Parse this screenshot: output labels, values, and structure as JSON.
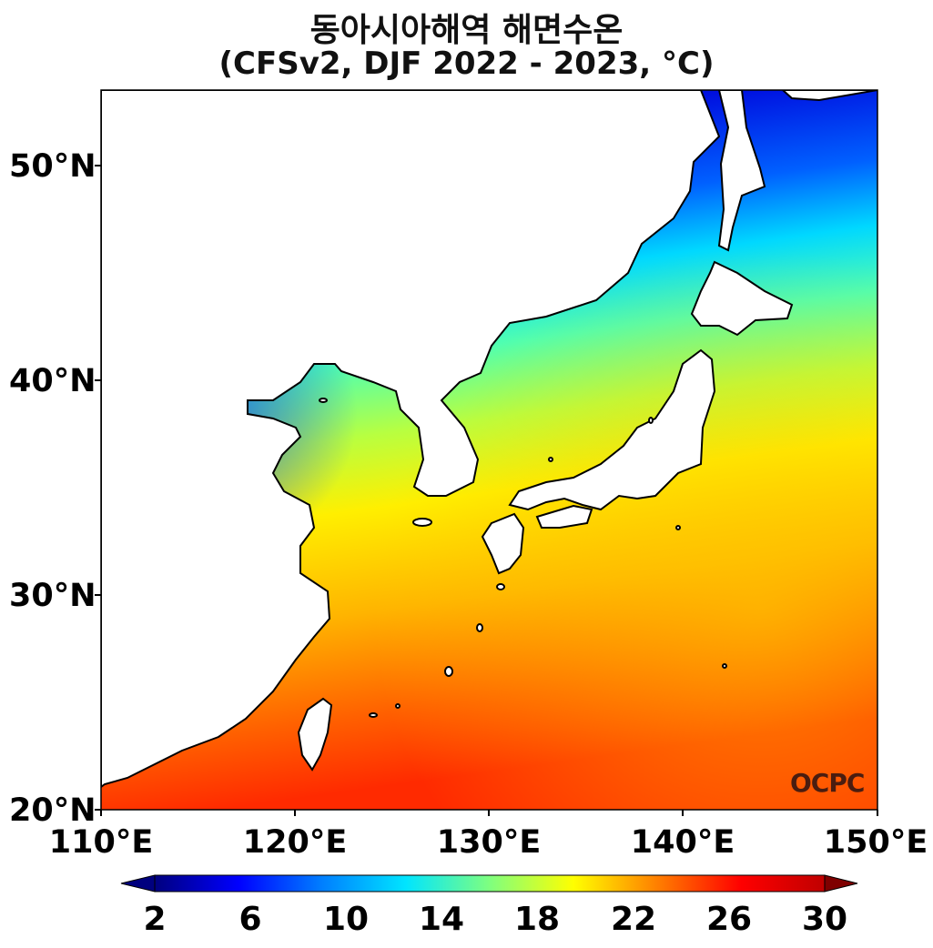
{
  "title": {
    "line1": "동아시아해역 해면수온",
    "line2": "(CFSv2, DJF 2022 - 2023, °C)"
  },
  "map": {
    "lon_range": [
      110,
      150
    ],
    "lat_range": [
      20,
      53.5
    ],
    "x_ticks": [
      "110°E",
      "120°E",
      "130°E",
      "140°E",
      "150°E"
    ],
    "y_ticks": [
      "50°N",
      "40°N",
      "30°N",
      "20°N"
    ],
    "watermark": "OCPC"
  },
  "colorbar": {
    "min": 2,
    "max": 30,
    "ticks": [
      "2",
      "6",
      "10",
      "14",
      "18",
      "22",
      "26",
      "30"
    ],
    "colors": [
      "#00007f",
      "#0000ff",
      "#007fff",
      "#00e5ff",
      "#7fff7f",
      "#ffff00",
      "#ff7f00",
      "#ff0000",
      "#7f0000"
    ]
  }
}
